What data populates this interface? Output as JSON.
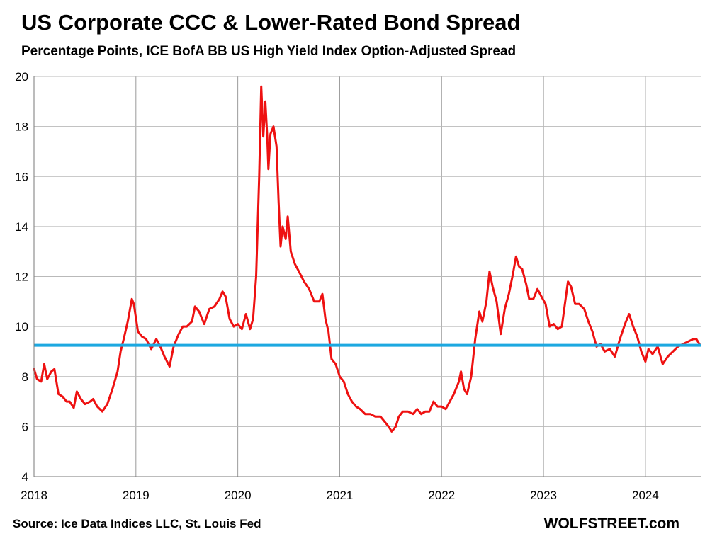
{
  "title": "US Corporate CCC & Lower-Rated Bond Spread",
  "subtitle": "Percentage Points, ICE BofA BB US High Yield Index Option-Adjusted Spread",
  "source": "Source: Ice Data Indices LLC, St. Louis Fed",
  "brand": "WOLFSTREET.com",
  "chart_data": {
    "type": "line",
    "title": "US Corporate CCC & Lower-Rated Bond Spread",
    "subtitle": "Percentage Points, ICE BofA BB US High Yield Index Option-Adjusted Spread",
    "xlabel": "",
    "ylabel": "",
    "xlim": [
      2018.0,
      2024.55
    ],
    "ylim": [
      4,
      20
    ],
    "x_ticks": [
      "2018",
      "2019",
      "2020",
      "2021",
      "2022",
      "2023",
      "2024"
    ],
    "y_ticks": [
      "4",
      "6",
      "8",
      "10",
      "12",
      "14",
      "16",
      "18",
      "20"
    ],
    "grid": true,
    "reference_line": {
      "y": 9.25,
      "color": "#1ca8e0"
    },
    "series": [
      {
        "color": "#ee1111",
        "points": [
          [
            2018.0,
            8.3
          ],
          [
            2018.03,
            7.9
          ],
          [
            2018.07,
            7.8
          ],
          [
            2018.1,
            8.5
          ],
          [
            2018.13,
            7.9
          ],
          [
            2018.17,
            8.2
          ],
          [
            2018.2,
            8.3
          ],
          [
            2018.24,
            7.3
          ],
          [
            2018.28,
            7.2
          ],
          [
            2018.32,
            7.0
          ],
          [
            2018.35,
            7.0
          ],
          [
            2018.39,
            6.75
          ],
          [
            2018.42,
            7.4
          ],
          [
            2018.46,
            7.1
          ],
          [
            2018.5,
            6.9
          ],
          [
            2018.55,
            7.0
          ],
          [
            2018.58,
            7.1
          ],
          [
            2018.62,
            6.8
          ],
          [
            2018.67,
            6.6
          ],
          [
            2018.72,
            6.9
          ],
          [
            2018.77,
            7.5
          ],
          [
            2018.82,
            8.2
          ],
          [
            2018.85,
            9.0
          ],
          [
            2018.88,
            9.5
          ],
          [
            2018.92,
            10.2
          ],
          [
            2018.96,
            11.1
          ],
          [
            2018.98,
            10.9
          ],
          [
            2019.02,
            9.8
          ],
          [
            2019.06,
            9.6
          ],
          [
            2019.1,
            9.5
          ],
          [
            2019.15,
            9.1
          ],
          [
            2019.2,
            9.5
          ],
          [
            2019.24,
            9.2
          ],
          [
            2019.28,
            8.8
          ],
          [
            2019.33,
            8.4
          ],
          [
            2019.37,
            9.2
          ],
          [
            2019.42,
            9.7
          ],
          [
            2019.46,
            10.0
          ],
          [
            2019.5,
            10.0
          ],
          [
            2019.55,
            10.2
          ],
          [
            2019.58,
            10.8
          ],
          [
            2019.62,
            10.6
          ],
          [
            2019.67,
            10.1
          ],
          [
            2019.72,
            10.7
          ],
          [
            2019.77,
            10.8
          ],
          [
            2019.82,
            11.1
          ],
          [
            2019.85,
            11.4
          ],
          [
            2019.88,
            11.2
          ],
          [
            2019.92,
            10.3
          ],
          [
            2019.96,
            10.0
          ],
          [
            2020.0,
            10.1
          ],
          [
            2020.04,
            9.9
          ],
          [
            2020.08,
            10.5
          ],
          [
            2020.12,
            9.9
          ],
          [
            2020.15,
            10.3
          ],
          [
            2020.18,
            12.0
          ],
          [
            2020.21,
            16.0
          ],
          [
            2020.23,
            19.6
          ],
          [
            2020.25,
            17.6
          ],
          [
            2020.27,
            19.0
          ],
          [
            2020.29,
            17.5
          ],
          [
            2020.3,
            16.3
          ],
          [
            2020.32,
            17.7
          ],
          [
            2020.35,
            18.0
          ],
          [
            2020.38,
            17.2
          ],
          [
            2020.4,
            15.0
          ],
          [
            2020.42,
            13.2
          ],
          [
            2020.44,
            14.0
          ],
          [
            2020.47,
            13.5
          ],
          [
            2020.49,
            14.4
          ],
          [
            2020.52,
            13.0
          ],
          [
            2020.56,
            12.5
          ],
          [
            2020.6,
            12.2
          ],
          [
            2020.65,
            11.8
          ],
          [
            2020.7,
            11.5
          ],
          [
            2020.75,
            11.0
          ],
          [
            2020.8,
            11.0
          ],
          [
            2020.83,
            11.3
          ],
          [
            2020.86,
            10.3
          ],
          [
            2020.89,
            9.8
          ],
          [
            2020.92,
            8.7
          ],
          [
            2020.96,
            8.5
          ],
          [
            2021.0,
            8.0
          ],
          [
            2021.04,
            7.8
          ],
          [
            2021.08,
            7.3
          ],
          [
            2021.12,
            7.0
          ],
          [
            2021.16,
            6.8
          ],
          [
            2021.2,
            6.7
          ],
          [
            2021.25,
            6.5
          ],
          [
            2021.3,
            6.5
          ],
          [
            2021.35,
            6.4
          ],
          [
            2021.4,
            6.4
          ],
          [
            2021.44,
            6.2
          ],
          [
            2021.48,
            6.0
          ],
          [
            2021.51,
            5.8
          ],
          [
            2021.55,
            6.0
          ],
          [
            2021.58,
            6.4
          ],
          [
            2021.62,
            6.6
          ],
          [
            2021.67,
            6.6
          ],
          [
            2021.72,
            6.5
          ],
          [
            2021.76,
            6.7
          ],
          [
            2021.8,
            6.5
          ],
          [
            2021.84,
            6.6
          ],
          [
            2021.88,
            6.6
          ],
          [
            2021.92,
            7.0
          ],
          [
            2021.96,
            6.8
          ],
          [
            2022.0,
            6.8
          ],
          [
            2022.04,
            6.7
          ],
          [
            2022.08,
            7.0
          ],
          [
            2022.12,
            7.3
          ],
          [
            2022.17,
            7.8
          ],
          [
            2022.19,
            8.2
          ],
          [
            2022.22,
            7.5
          ],
          [
            2022.25,
            7.3
          ],
          [
            2022.29,
            8.0
          ],
          [
            2022.33,
            9.5
          ],
          [
            2022.37,
            10.6
          ],
          [
            2022.4,
            10.2
          ],
          [
            2022.44,
            11.0
          ],
          [
            2022.47,
            12.2
          ],
          [
            2022.5,
            11.6
          ],
          [
            2022.54,
            11.0
          ],
          [
            2022.58,
            9.7
          ],
          [
            2022.62,
            10.7
          ],
          [
            2022.66,
            11.3
          ],
          [
            2022.7,
            12.1
          ],
          [
            2022.73,
            12.8
          ],
          [
            2022.76,
            12.4
          ],
          [
            2022.79,
            12.3
          ],
          [
            2022.83,
            11.7
          ],
          [
            2022.86,
            11.1
          ],
          [
            2022.9,
            11.1
          ],
          [
            2022.94,
            11.5
          ],
          [
            2022.98,
            11.2
          ],
          [
            2023.02,
            10.9
          ],
          [
            2023.06,
            10.0
          ],
          [
            2023.1,
            10.1
          ],
          [
            2023.14,
            9.9
          ],
          [
            2023.18,
            10.0
          ],
          [
            2023.22,
            11.2
          ],
          [
            2023.24,
            11.8
          ],
          [
            2023.27,
            11.6
          ],
          [
            2023.31,
            10.9
          ],
          [
            2023.35,
            10.9
          ],
          [
            2023.4,
            10.7
          ],
          [
            2023.44,
            10.2
          ],
          [
            2023.48,
            9.8
          ],
          [
            2023.52,
            9.2
          ],
          [
            2023.56,
            9.3
          ],
          [
            2023.6,
            9.0
          ],
          [
            2023.65,
            9.1
          ],
          [
            2023.7,
            8.8
          ],
          [
            2023.75,
            9.5
          ],
          [
            2023.8,
            10.1
          ],
          [
            2023.84,
            10.5
          ],
          [
            2023.88,
            10.0
          ],
          [
            2023.92,
            9.6
          ],
          [
            2023.96,
            9.0
          ],
          [
            2024.0,
            8.6
          ],
          [
            2024.03,
            9.1
          ],
          [
            2024.07,
            8.9
          ],
          [
            2024.12,
            9.2
          ],
          [
            2024.17,
            8.5
          ],
          [
            2024.22,
            8.8
          ],
          [
            2024.27,
            9.0
          ],
          [
            2024.32,
            9.2
          ],
          [
            2024.37,
            9.3
          ],
          [
            2024.42,
            9.4
          ],
          [
            2024.47,
            9.5
          ],
          [
            2024.5,
            9.5
          ],
          [
            2024.53,
            9.3
          ]
        ]
      }
    ]
  }
}
